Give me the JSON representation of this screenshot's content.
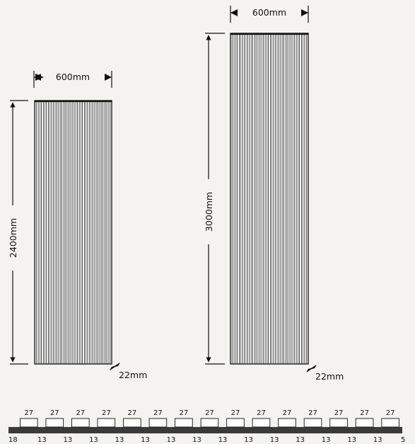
{
  "panels": [
    {
      "width_label": "600mm",
      "height_label": "2400mm",
      "depth_label": "22mm",
      "slat_count": 15
    },
    {
      "width_label": "600mm",
      "height_label": "3000mm",
      "depth_label": "22mm",
      "slat_count": 15
    }
  ],
  "profile": {
    "top_labels": [
      "27",
      "27",
      "27",
      "27",
      "27",
      "27",
      "27",
      "27",
      "27",
      "27",
      "27",
      "27",
      "27",
      "27",
      "27"
    ],
    "bottom_labels": [
      "18",
      "13",
      "13",
      "13",
      "13",
      "13",
      "13",
      "13",
      "13",
      "13",
      "13",
      "13",
      "13",
      "13",
      "13",
      "5"
    ]
  },
  "colors": {
    "line": "#111111",
    "slat_fill": "#ffffff",
    "base": "#3a3a3a",
    "background": "#f4f3ef"
  }
}
